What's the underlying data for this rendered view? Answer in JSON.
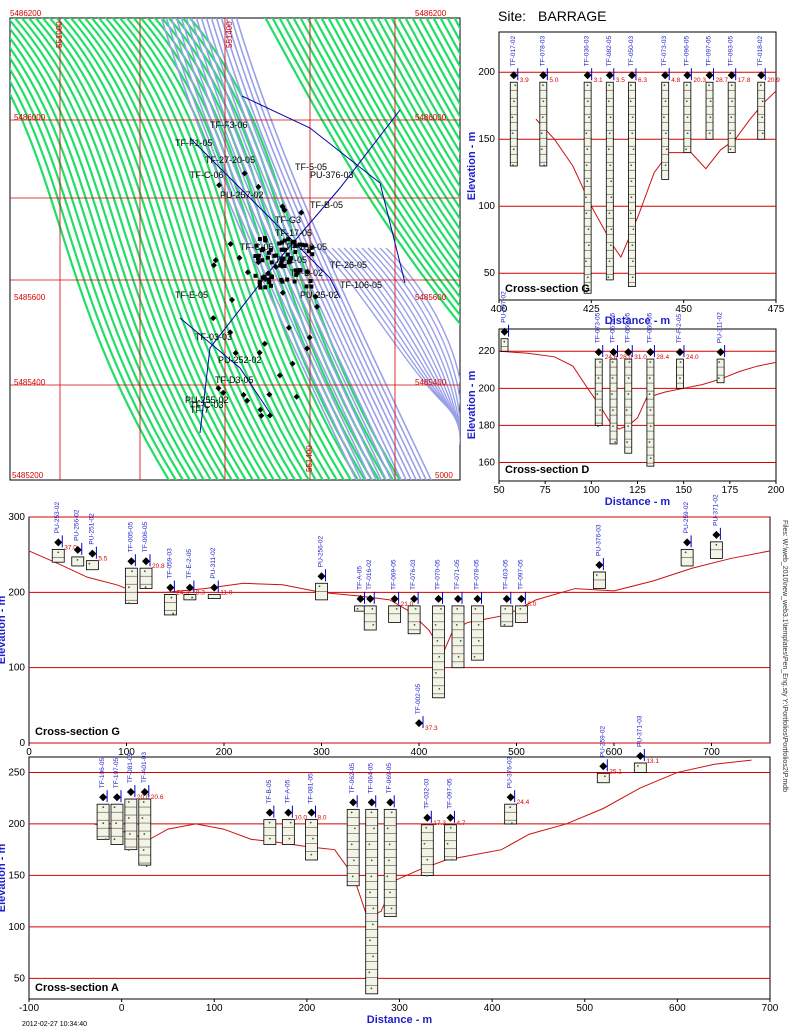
{
  "site": {
    "label": "Site:",
    "name": "BARRAGE"
  },
  "timestamp": "2012-02-27   10:34:40",
  "side_note": "Files: W:\\web_2010\\new_web3.1\\templates\\Pen_Eng.sty   Y:\\Portfolios\\Portfolios2\\P.mdb",
  "colors": {
    "grid": "#d40000",
    "axis_label": "#1f1fcc",
    "terrain": "#cc1111",
    "contour": "#22dd66",
    "bed": "#9aa0e8",
    "section": "#0000aa"
  },
  "chart_data": [
    {
      "type": "map",
      "coord_labels": {
        "top_left": "5486200",
        "top_right": "5486200",
        "right_1": "5486000",
        "left_1": "5486000",
        "right_2": "5485600",
        "left_2": "5485600",
        "right_3": "5485400",
        "left_3": "5485400",
        "bottom_left": "5485200",
        "bottom_right": "5000",
        "top_1": "551000",
        "top_2": "551400",
        "bottom_1": "551400"
      },
      "points": [
        "TF-F3-06",
        "TF-F1-05",
        "TF-27-20-05",
        "TF-C-06",
        "TF-E-05",
        "TF-03-03",
        "TF-C-05",
        "TF-B-05",
        "TF-5-05",
        "PU-376-03",
        "PU-257-02",
        "PU-252-02",
        "TF-C-03",
        "TF-G3",
        "TF-17-05",
        "TF-180-05",
        "TF-1-05",
        "TF-B-02",
        "TF-26-05",
        "TF-106-05",
        "PU-255-02",
        "PU-25-02",
        "TF-D3-05",
        "TF-7"
      ]
    },
    {
      "type": "scatter",
      "title": "Cross-section G",
      "xlabel": "Distance - m",
      "ylabel": "Elevation - m",
      "xlim": [
        400,
        475
      ],
      "ylim": [
        30,
        230
      ],
      "xticks": [
        400,
        425,
        450,
        475
      ],
      "yticks": [
        50,
        100,
        150,
        200
      ],
      "terrain": [
        [
          410,
          165
        ],
        [
          415,
          150
        ],
        [
          420,
          130
        ],
        [
          425,
          100
        ],
        [
          428,
          85
        ],
        [
          431,
          70
        ],
        [
          433,
          62
        ],
        [
          435,
          75
        ],
        [
          438,
          95
        ],
        [
          442,
          125
        ],
        [
          446,
          140
        ],
        [
          452,
          140
        ],
        [
          456,
          128
        ],
        [
          460,
          142
        ],
        [
          464,
          150
        ],
        [
          468,
          165
        ],
        [
          472,
          178
        ],
        [
          475,
          186
        ]
      ],
      "holes": [
        {
          "id": "TF-017-02",
          "x": 404,
          "top": 197,
          "bottom": 130,
          "label": "3.9"
        },
        {
          "id": "TF-078-03",
          "x": 412,
          "top": 197,
          "bottom": 130,
          "label": "5.0"
        },
        {
          "id": "TF-036-03",
          "x": 424,
          "top": 197,
          "bottom": 35,
          "label": "3.1"
        },
        {
          "id": "TF-082-05",
          "x": 430,
          "top": 197,
          "bottom": 45,
          "label": "3.5"
        },
        {
          "id": "TF-050-03",
          "x": 436,
          "top": 197,
          "bottom": 40,
          "label": "6.3"
        },
        {
          "id": "TF-073-03",
          "x": 445,
          "top": 197,
          "bottom": 120,
          "label": "4.8"
        },
        {
          "id": "TF-096-05",
          "x": 451,
          "top": 197,
          "bottom": 140,
          "label": "20.3"
        },
        {
          "id": "TF-097-05",
          "x": 457,
          "top": 197,
          "bottom": 150,
          "label": "28.7"
        },
        {
          "id": "TF-093-05",
          "x": 463,
          "top": 197,
          "bottom": 140,
          "label": "17.8"
        },
        {
          "id": "TF-018-02",
          "x": 471,
          "top": 197,
          "bottom": 150,
          "label": "20.9"
        }
      ]
    },
    {
      "type": "scatter",
      "title": "Cross-section D",
      "xlabel": "Distance - m",
      "ylabel": "Elevation - m",
      "xlim": [
        50,
        200
      ],
      "ylim": [
        150,
        232
      ],
      "xticks": [
        50,
        75,
        100,
        125,
        150,
        175,
        200
      ],
      "yticks": [
        160,
        180,
        200,
        220
      ],
      "terrain": [
        [
          50,
          220
        ],
        [
          65,
          219
        ],
        [
          80,
          217
        ],
        [
          90,
          212
        ],
        [
          98,
          200
        ],
        [
          105,
          190
        ],
        [
          110,
          182
        ],
        [
          115,
          178
        ],
        [
          120,
          180
        ],
        [
          125,
          184
        ],
        [
          130,
          195
        ],
        [
          140,
          198
        ],
        [
          150,
          200
        ],
        [
          160,
          202
        ],
        [
          170,
          205
        ],
        [
          180,
          209
        ],
        [
          190,
          212
        ],
        [
          200,
          214
        ]
      ],
      "holes": [
        {
          "id": "PU-007-02",
          "x": 53,
          "top": 230,
          "bottom": 220,
          "label": ""
        },
        {
          "id": "TF-073-05",
          "x": 104,
          "top": 219,
          "bottom": 180,
          "label": "24.6"
        },
        {
          "id": "TF-051-05",
          "x": 112,
          "top": 219,
          "bottom": 170,
          "label": "28.0"
        },
        {
          "id": "TF-050-05",
          "x": 120,
          "top": 219,
          "bottom": 165,
          "label": "31.0"
        },
        {
          "id": "TF-060-05",
          "x": 132,
          "top": 219,
          "bottom": 158,
          "label": "28.4"
        },
        {
          "id": "TF-F-2-05",
          "x": 148,
          "top": 219,
          "bottom": 200,
          "label": "24.0"
        },
        {
          "id": "PU-311-02",
          "x": 170,
          "top": 219,
          "bottom": 203,
          "label": ""
        }
      ]
    },
    {
      "type": "scatter",
      "title": "Cross-section G",
      "xlabel": "Distance - m",
      "ylabel": "Elevation - m",
      "xlim": [
        0,
        760
      ],
      "ylim": [
        0,
        300
      ],
      "xticks": [
        0,
        100,
        200,
        300,
        400,
        500,
        600,
        700
      ],
      "yticks": [
        0,
        100,
        200,
        300
      ],
      "terrain": [
        [
          0,
          255
        ],
        [
          30,
          238
        ],
        [
          60,
          220
        ],
        [
          90,
          210
        ],
        [
          110,
          200
        ],
        [
          140,
          200
        ],
        [
          180,
          205
        ],
        [
          220,
          212
        ],
        [
          260,
          210
        ],
        [
          300,
          200
        ],
        [
          340,
          195
        ],
        [
          370,
          190
        ],
        [
          390,
          175
        ],
        [
          410,
          150
        ],
        [
          425,
          120
        ],
        [
          435,
          150
        ],
        [
          450,
          160
        ],
        [
          470,
          165
        ],
        [
          490,
          170
        ],
        [
          520,
          190
        ],
        [
          560,
          205
        ],
        [
          600,
          202
        ],
        [
          640,
          215
        ],
        [
          680,
          232
        ],
        [
          720,
          245
        ],
        [
          760,
          255
        ]
      ],
      "holes": [
        {
          "id": "PU-253-02",
          "x": 30,
          "top": 265,
          "bottom": 240,
          "label": "37.0"
        },
        {
          "id": "PU-256-02",
          "x": 50,
          "top": 255,
          "bottom": 235,
          "label": ""
        },
        {
          "id": "PU-251-02",
          "x": 65,
          "top": 250,
          "bottom": 230,
          "label": "5.5"
        },
        {
          "id": "TF-005-05",
          "x": 105,
          "top": 240,
          "bottom": 185,
          "label": ""
        },
        {
          "id": "TF-006-05",
          "x": 120,
          "top": 240,
          "bottom": 205,
          "label": "20.8"
        },
        {
          "id": "TF-059-03",
          "x": 145,
          "top": 205,
          "bottom": 170,
          "label": "24.3"
        },
        {
          "id": "TF-E-2-05",
          "x": 165,
          "top": 205,
          "bottom": 190,
          "label": "8.3"
        },
        {
          "id": "PU-311-02",
          "x": 190,
          "top": 205,
          "bottom": 200,
          "label": "11.0"
        },
        {
          "id": "PU-256-02",
          "x": 300,
          "top": 220,
          "bottom": 190,
          "label": ""
        },
        {
          "id": "TF-A-05",
          "x": 340,
          "top": 190,
          "bottom": 175,
          "label": ""
        },
        {
          "id": "TF-016-02",
          "x": 350,
          "top": 190,
          "bottom": 150,
          "label": ""
        },
        {
          "id": "TF-069-05",
          "x": 375,
          "top": 190,
          "bottom": 160,
          "label": "21.0"
        },
        {
          "id": "TF-076-03",
          "x": 395,
          "top": 190,
          "bottom": 145,
          "label": ""
        },
        {
          "id": "TF-002-05",
          "x": 400,
          "top": 25,
          "bottom": 25,
          "label": "37.3"
        },
        {
          "id": "TF-070-05",
          "x": 420,
          "top": 190,
          "bottom": 60,
          "label": ""
        },
        {
          "id": "TF-071-05",
          "x": 440,
          "top": 190,
          "bottom": 100,
          "label": ""
        },
        {
          "id": "TF-078-05",
          "x": 460,
          "top": 190,
          "bottom": 110,
          "label": ""
        },
        {
          "id": "TF-403-05",
          "x": 490,
          "top": 190,
          "bottom": 155,
          "label": ""
        },
        {
          "id": "TF-097-05",
          "x": 505,
          "top": 190,
          "bottom": 160,
          "label": "8.0"
        },
        {
          "id": "PU-376-03",
          "x": 585,
          "top": 235,
          "bottom": 205,
          "label": ""
        },
        {
          "id": "PU-259-02",
          "x": 675,
          "top": 265,
          "bottom": 235,
          "label": ""
        },
        {
          "id": "PU-371-02",
          "x": 705,
          "top": 275,
          "bottom": 245,
          "label": ""
        }
      ]
    },
    {
      "type": "scatter",
      "title": "Cross-section A",
      "xlabel": "Distance - m",
      "ylabel": "Elevation - m",
      "xlim": [
        -100,
        700
      ],
      "ylim": [
        30,
        265
      ],
      "xticks": [
        -100,
        0,
        100,
        200,
        300,
        400,
        500,
        600,
        700
      ],
      "yticks": [
        50,
        100,
        150,
        200,
        250
      ],
      "terrain": [
        [
          -30,
          200
        ],
        [
          0,
          193
        ],
        [
          30,
          185
        ],
        [
          50,
          195
        ],
        [
          80,
          200
        ],
        [
          110,
          195
        ],
        [
          140,
          185
        ],
        [
          170,
          182
        ],
        [
          200,
          178
        ],
        [
          230,
          175
        ],
        [
          250,
          150
        ],
        [
          265,
          110
        ],
        [
          280,
          115
        ],
        [
          295,
          145
        ],
        [
          320,
          155
        ],
        [
          350,
          165
        ],
        [
          380,
          170
        ],
        [
          410,
          175
        ],
        [
          440,
          190
        ],
        [
          480,
          200
        ],
        [
          520,
          215
        ],
        [
          560,
          235
        ],
        [
          600,
          250
        ],
        [
          640,
          258
        ],
        [
          680,
          262
        ]
      ],
      "holes": [
        {
          "id": "TF-106-05",
          "x": -20,
          "top": 225,
          "bottom": 185,
          "label": ""
        },
        {
          "id": "TF-107-05",
          "x": -5,
          "top": 225,
          "bottom": 180,
          "label": ""
        },
        {
          "id": "TF-081-05",
          "x": 10,
          "top": 230,
          "bottom": 175,
          "label": "20.0"
        },
        {
          "id": "TF-A01-03",
          "x": 25,
          "top": 230,
          "bottom": 160,
          "label": "20.6"
        },
        {
          "id": "TF-B-05",
          "x": 160,
          "top": 210,
          "bottom": 180,
          "label": ""
        },
        {
          "id": "TF-A-05",
          "x": 180,
          "top": 210,
          "bottom": 180,
          "label": "10.0"
        },
        {
          "id": "TF-081-05",
          "x": 205,
          "top": 210,
          "bottom": 165,
          "label": "8.0"
        },
        {
          "id": "TF-062-05",
          "x": 250,
          "top": 220,
          "bottom": 140,
          "label": ""
        },
        {
          "id": "TF-064-05",
          "x": 270,
          "top": 220,
          "bottom": 35,
          "label": ""
        },
        {
          "id": "TF-069-05",
          "x": 290,
          "top": 220,
          "bottom": 110,
          "label": ""
        },
        {
          "id": "TF-032-03",
          "x": 330,
          "top": 205,
          "bottom": 150,
          "label": "17.3"
        },
        {
          "id": "TF-097-05",
          "x": 355,
          "top": 205,
          "bottom": 165,
          "label": "4.7"
        },
        {
          "id": "PU-376-03",
          "x": 420,
          "top": 225,
          "bottom": 200,
          "label": "24.4"
        },
        {
          "id": "PU-259-02",
          "x": 520,
          "top": 255,
          "bottom": 240,
          "label": "25.1"
        },
        {
          "id": "PU-371-03",
          "x": 560,
          "top": 265,
          "bottom": 250,
          "label": "13.1"
        }
      ]
    }
  ]
}
